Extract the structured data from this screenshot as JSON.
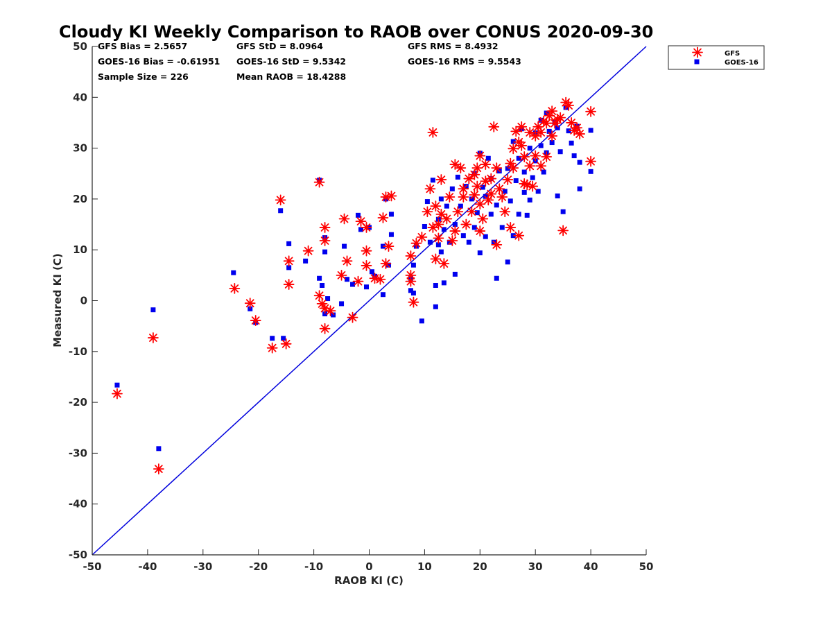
{
  "stats": {
    "gfs_bias": "GFS Bias = 2.5657",
    "goes_bias": "GOES-16 Bias = -0.61951",
    "sample_size": "Sample Size = 226",
    "gfs_std": "GFS StD = 8.0964",
    "goes_std": "GOES-16 StD = 9.5342",
    "mean_raob": "Mean RAOB = 18.4288",
    "gfs_rms": "GFS RMS = 8.4932",
    "goes_rms": "GOES-16 RMS = 9.5543"
  },
  "colors": {
    "gfs": "#ff0000",
    "goes": "#0000ee",
    "one_to_one_line": "#0000dd",
    "axis": "#262626"
  },
  "chart_data": {
    "type": "scatter",
    "title": "Cloudy KI Weekly Comparison to RAOB over CONUS 2020-09-30",
    "xlabel": "RAOB KI (C)",
    "ylabel": "Measured KI (C)",
    "xlim": [
      -50,
      50
    ],
    "ylim": [
      -50,
      50
    ],
    "xticks": [
      -50,
      -40,
      -30,
      -20,
      -10,
      0,
      10,
      20,
      30,
      40,
      50
    ],
    "yticks": [
      -50,
      -40,
      -30,
      -20,
      -10,
      0,
      10,
      20,
      30,
      40,
      50
    ],
    "grid": false,
    "legend_position": "top-right outside",
    "reference_line": {
      "from": [
        -50,
        -50
      ],
      "to": [
        50,
        50
      ]
    },
    "series": [
      {
        "name": "GFS",
        "marker": "asterisk",
        "points": [
          [
            -45.5,
            -18.3
          ],
          [
            -39,
            -7.3
          ],
          [
            -38,
            -33.1
          ],
          [
            -24.3,
            2.4
          ],
          [
            -21.5,
            -0.5
          ],
          [
            -20.5,
            -3.9
          ],
          [
            -17.5,
            -9.3
          ],
          [
            -16,
            19.8
          ],
          [
            -15,
            -8.5
          ],
          [
            -14.5,
            7.8
          ],
          [
            -14.5,
            3.2
          ],
          [
            -11,
            9.8
          ],
          [
            -9,
            23.3
          ],
          [
            -9,
            1.0
          ],
          [
            -8.5,
            -0.6
          ],
          [
            -8,
            14.4
          ],
          [
            -8,
            11.8
          ],
          [
            -8,
            -5.5
          ],
          [
            -8,
            -1.5
          ],
          [
            -7,
            -2.0
          ],
          [
            -5,
            5.0
          ],
          [
            -4.5,
            16.1
          ],
          [
            -4,
            7.8
          ],
          [
            -3,
            -3.3
          ],
          [
            -2,
            3.8
          ],
          [
            -1.5,
            15.6
          ],
          [
            -0.5,
            14.4
          ],
          [
            -0.5,
            6.9
          ],
          [
            -0.5,
            9.8
          ],
          [
            1,
            4.4
          ],
          [
            2,
            4.2
          ],
          [
            2.5,
            16.3
          ],
          [
            3,
            20.4
          ],
          [
            3,
            7.3
          ],
          [
            3.5,
            10.7
          ],
          [
            4,
            20.6
          ],
          [
            7.5,
            3.8
          ],
          [
            7.5,
            5.0
          ],
          [
            7.5,
            8.8
          ],
          [
            8,
            -0.3
          ],
          [
            8.5,
            11.3
          ],
          [
            9.5,
            12.5
          ],
          [
            10.5,
            17.5
          ],
          [
            11,
            22.0
          ],
          [
            11.5,
            33.1
          ],
          [
            11.5,
            14.4
          ],
          [
            12,
            8.2
          ],
          [
            12,
            18.6
          ],
          [
            12.5,
            15.0
          ],
          [
            12.5,
            12.3
          ],
          [
            13,
            23.8
          ],
          [
            13,
            17.0
          ],
          [
            13.5,
            7.3
          ],
          [
            14,
            16.1
          ],
          [
            14.5,
            20.4
          ],
          [
            15,
            11.8
          ],
          [
            15.5,
            26.8
          ],
          [
            15.5,
            13.7
          ],
          [
            16,
            17.5
          ],
          [
            16.5,
            26.1
          ],
          [
            17,
            22.0
          ],
          [
            17,
            20.4
          ],
          [
            17.5,
            15.0
          ],
          [
            18,
            24.0
          ],
          [
            18.5,
            17.5
          ],
          [
            19,
            20.8
          ],
          [
            19,
            24.8
          ],
          [
            19.5,
            26.1
          ],
          [
            19.5,
            22.5
          ],
          [
            20,
            28.5
          ],
          [
            20,
            19.0
          ],
          [
            20,
            13.7
          ],
          [
            20.5,
            16.1
          ],
          [
            21,
            23.5
          ],
          [
            21,
            26.8
          ],
          [
            21.5,
            19.8
          ],
          [
            22,
            24.0
          ],
          [
            22,
            21.0
          ],
          [
            22.5,
            34.2
          ],
          [
            23,
            11.0
          ],
          [
            23,
            26.1
          ],
          [
            23.5,
            22.0
          ],
          [
            24,
            20.4
          ],
          [
            24.5,
            17.5
          ],
          [
            25,
            23.8
          ],
          [
            25.5,
            27.0
          ],
          [
            25.5,
            14.4
          ],
          [
            26,
            29.9
          ],
          [
            26,
            26.1
          ],
          [
            26.5,
            33.3
          ],
          [
            27,
            31.2
          ],
          [
            27,
            12.8
          ],
          [
            27.5,
            34.2
          ],
          [
            27.5,
            30.5
          ],
          [
            28,
            28.3
          ],
          [
            28,
            23.0
          ],
          [
            28.5,
            22.8
          ],
          [
            29,
            33.1
          ],
          [
            29,
            26.5
          ],
          [
            29.5,
            22.5
          ],
          [
            30,
            32.4
          ],
          [
            30,
            28.5
          ],
          [
            30.5,
            34.2
          ],
          [
            31,
            33.1
          ],
          [
            31,
            26.5
          ],
          [
            31.5,
            35.3
          ],
          [
            32,
            34.9
          ],
          [
            32,
            28.3
          ],
          [
            32.5,
            36.4
          ],
          [
            33,
            37.3
          ],
          [
            33,
            32.4
          ],
          [
            33.5,
            34.9
          ],
          [
            34,
            35.6
          ],
          [
            34.5,
            36.0
          ],
          [
            35,
            13.8
          ],
          [
            35.5,
            39.0
          ],
          [
            36,
            38.4
          ],
          [
            36.5,
            35.0
          ],
          [
            37,
            33.5
          ],
          [
            37.5,
            34.0
          ],
          [
            38,
            32.8
          ],
          [
            40,
            37.2
          ],
          [
            40,
            27.4
          ]
        ]
      },
      {
        "name": "GOES-16",
        "marker": "square",
        "points": [
          [
            -45.5,
            -16.6
          ],
          [
            -39,
            -1.8
          ],
          [
            -38,
            -29.1
          ],
          [
            -24.5,
            5.5
          ],
          [
            -21.5,
            -1.6
          ],
          [
            -20.5,
            -4.3
          ],
          [
            -17.5,
            -7.4
          ],
          [
            -16,
            17.7
          ],
          [
            -15.5,
            -7.4
          ],
          [
            -14.5,
            11.2
          ],
          [
            -14.5,
            6.5
          ],
          [
            -11.5,
            7.8
          ],
          [
            -9,
            23.7
          ],
          [
            -9,
            4.4
          ],
          [
            -8.5,
            3.0
          ],
          [
            -8,
            12.4
          ],
          [
            -8,
            9.6
          ],
          [
            -8,
            -2.6
          ],
          [
            -7.5,
            0.4
          ],
          [
            -6.5,
            -2.8
          ],
          [
            -5,
            -0.6
          ],
          [
            -4.5,
            10.7
          ],
          [
            -4,
            4.2
          ],
          [
            -3,
            3.2
          ],
          [
            -2,
            16.8
          ],
          [
            -1.5,
            14.0
          ],
          [
            -0.5,
            2.7
          ],
          [
            0,
            14.4
          ],
          [
            0.5,
            5.7
          ],
          [
            1,
            4.8
          ],
          [
            2.5,
            1.2
          ],
          [
            2.5,
            10.7
          ],
          [
            3,
            20.0
          ],
          [
            3.5,
            7.0
          ],
          [
            4,
            13.0
          ],
          [
            4,
            17.0
          ],
          [
            7.5,
            2.0
          ],
          [
            7.5,
            4.4
          ],
          [
            8,
            7.0
          ],
          [
            8,
            1.5
          ],
          [
            8.5,
            10.7
          ],
          [
            9.5,
            -4.0
          ],
          [
            10,
            14.6
          ],
          [
            10.5,
            19.5
          ],
          [
            11,
            11.5
          ],
          [
            11.5,
            23.7
          ],
          [
            12,
            3.0
          ],
          [
            12,
            -1.2
          ],
          [
            12.5,
            16.0
          ],
          [
            12.5,
            11.0
          ],
          [
            13,
            20.0
          ],
          [
            13,
            9.6
          ],
          [
            13.5,
            14.0
          ],
          [
            13.5,
            3.5
          ],
          [
            14,
            18.6
          ],
          [
            14.5,
            11.5
          ],
          [
            15,
            22.0
          ],
          [
            15.5,
            5.2
          ],
          [
            15.5,
            15.0
          ],
          [
            16,
            24.3
          ],
          [
            16.5,
            18.6
          ],
          [
            17,
            12.8
          ],
          [
            17.5,
            22.5
          ],
          [
            18,
            11.5
          ],
          [
            18.5,
            20.0
          ],
          [
            19,
            14.4
          ],
          [
            19,
            25.0
          ],
          [
            19.5,
            17.3
          ],
          [
            20,
            9.4
          ],
          [
            20,
            29.0
          ],
          [
            20.5,
            22.3
          ],
          [
            21,
            12.6
          ],
          [
            21,
            20.5
          ],
          [
            21.5,
            28.0
          ],
          [
            22,
            17.0
          ],
          [
            22,
            24.0
          ],
          [
            22.5,
            11.5
          ],
          [
            23,
            4.4
          ],
          [
            23,
            18.8
          ],
          [
            23.5,
            25.5
          ],
          [
            24,
            14.4
          ],
          [
            24.5,
            21.5
          ],
          [
            25,
            7.6
          ],
          [
            25,
            26.0
          ],
          [
            25.5,
            19.6
          ],
          [
            26,
            12.8
          ],
          [
            26,
            31.3
          ],
          [
            26.5,
            23.6
          ],
          [
            27,
            28.0
          ],
          [
            27,
            17.0
          ],
          [
            27.5,
            33.8
          ],
          [
            28,
            21.3
          ],
          [
            28,
            25.3
          ],
          [
            28.5,
            16.8
          ],
          [
            29,
            30.0
          ],
          [
            29,
            19.8
          ],
          [
            29.5,
            24.2
          ],
          [
            30,
            33.0
          ],
          [
            30,
            27.5
          ],
          [
            30.5,
            21.5
          ],
          [
            31,
            35.5
          ],
          [
            31,
            30.5
          ],
          [
            31.5,
            25.3
          ],
          [
            32,
            36.9
          ],
          [
            32,
            29.1
          ],
          [
            32.5,
            33.3
          ],
          [
            33,
            31.1
          ],
          [
            33.5,
            35.0
          ],
          [
            34,
            20.6
          ],
          [
            34,
            34.0
          ],
          [
            34.5,
            29.3
          ],
          [
            35,
            17.5
          ],
          [
            35.5,
            38.0
          ],
          [
            36,
            33.4
          ],
          [
            36.5,
            31.0
          ],
          [
            37,
            28.5
          ],
          [
            37.5,
            34.3
          ],
          [
            38,
            22.0
          ],
          [
            38,
            27.2
          ],
          [
            40,
            33.5
          ],
          [
            40,
            25.4
          ]
        ]
      }
    ]
  }
}
